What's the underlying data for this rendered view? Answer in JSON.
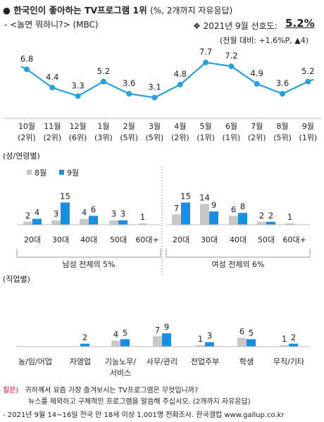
{
  "header": {
    "bullet": "●",
    "title": "한국인이 좋아하는 TV프로그램 1위",
    "title_note": "(%, 2개까지 자유응답)",
    "program": "- <놀면 뭐하니?> (MBC)",
    "pref_label": "❖ 2021년 9월 선호도:",
    "pref_value": "5.2%",
    "pref_change": "(전월 대비: +1.6%P, ▲4)"
  },
  "colors": {
    "accent": "#1a8fe0",
    "light": "#c8c8c8",
    "line": "#2a9fdd",
    "red": "#d0021b"
  },
  "chart_data": [
    {
      "type": "line",
      "title": "",
      "categories": [
        "10월",
        "11월",
        "12월",
        "1월",
        "2월",
        "3월",
        "4월",
        "5월",
        "6월",
        "7월",
        "8월",
        "9월"
      ],
      "rank_labels": [
        "(2위)",
        "(2위)",
        "(6위)",
        "(3위)",
        "(5위)",
        "(5위)",
        "(2위)",
        "(1위)",
        "(1위)",
        "(2위)",
        "(5위)",
        "(1위)"
      ],
      "series": [
        {
          "name": "",
          "values": [
            6.8,
            4.4,
            3.3,
            5.2,
            3.6,
            3.1,
            4.8,
            7.7,
            7.2,
            4.9,
            3.6,
            5.2
          ]
        }
      ],
      "ylim": [
        2.5,
        8.5
      ]
    },
    {
      "type": "bar",
      "section_label": "(성/연령별)",
      "legend": [
        {
          "name": "8월"
        },
        {
          "name": "9월"
        }
      ],
      "groups": [
        {
          "label": "남성 전체의 5%",
          "categories": [
            "20대",
            "30대",
            "40대",
            "50대",
            "60대+"
          ],
          "series": [
            {
              "name": "8월",
              "values": [
                2,
                3,
                4,
                3,
                1
              ]
            },
            {
              "name": "9월",
              "values": [
                4,
                15,
                6,
                3,
                null
              ]
            }
          ]
        },
        {
          "label": "여성 전체의 6%",
          "categories": [
            "20대",
            "30대",
            "40대",
            "50대",
            "60대+"
          ],
          "series": [
            {
              "name": "8월",
              "values": [
                7,
                14,
                6,
                2,
                1
              ]
            },
            {
              "name": "9월",
              "values": [
                15,
                9,
                8,
                2,
                null
              ]
            }
          ]
        }
      ],
      "ylim": [
        0,
        16
      ]
    },
    {
      "type": "bar",
      "section_label": "(직업별)",
      "categories": [
        "농/임/어업",
        "자영업",
        "기능노무/\n서비스",
        "사무/관리",
        "전업주부",
        "학생",
        "무직/기타"
      ],
      "series": [
        {
          "name": "8월",
          "values": [
            null,
            null,
            4,
            7,
            1,
            6,
            1
          ]
        },
        {
          "name": "9월",
          "values": [
            null,
            2,
            5,
            9,
            3,
            5,
            2
          ]
        }
      ],
      "ylim": [
        0,
        16
      ]
    }
  ],
  "footer": {
    "q_label": "질문)",
    "q1": "귀하께서 요즘 가장 즐겨보시는 TV프로그램은 무엇입니까?",
    "q2": "뉴스를 제외하고 구체적인 프로그램을 말씀해 주십시오. (2개까지 자유응답)",
    "source": "- 2021년 9월 14~16일 전국 만 18세 이상 1,001명 전화조사. 한국갤럽 www.gallup.co.kr"
  }
}
